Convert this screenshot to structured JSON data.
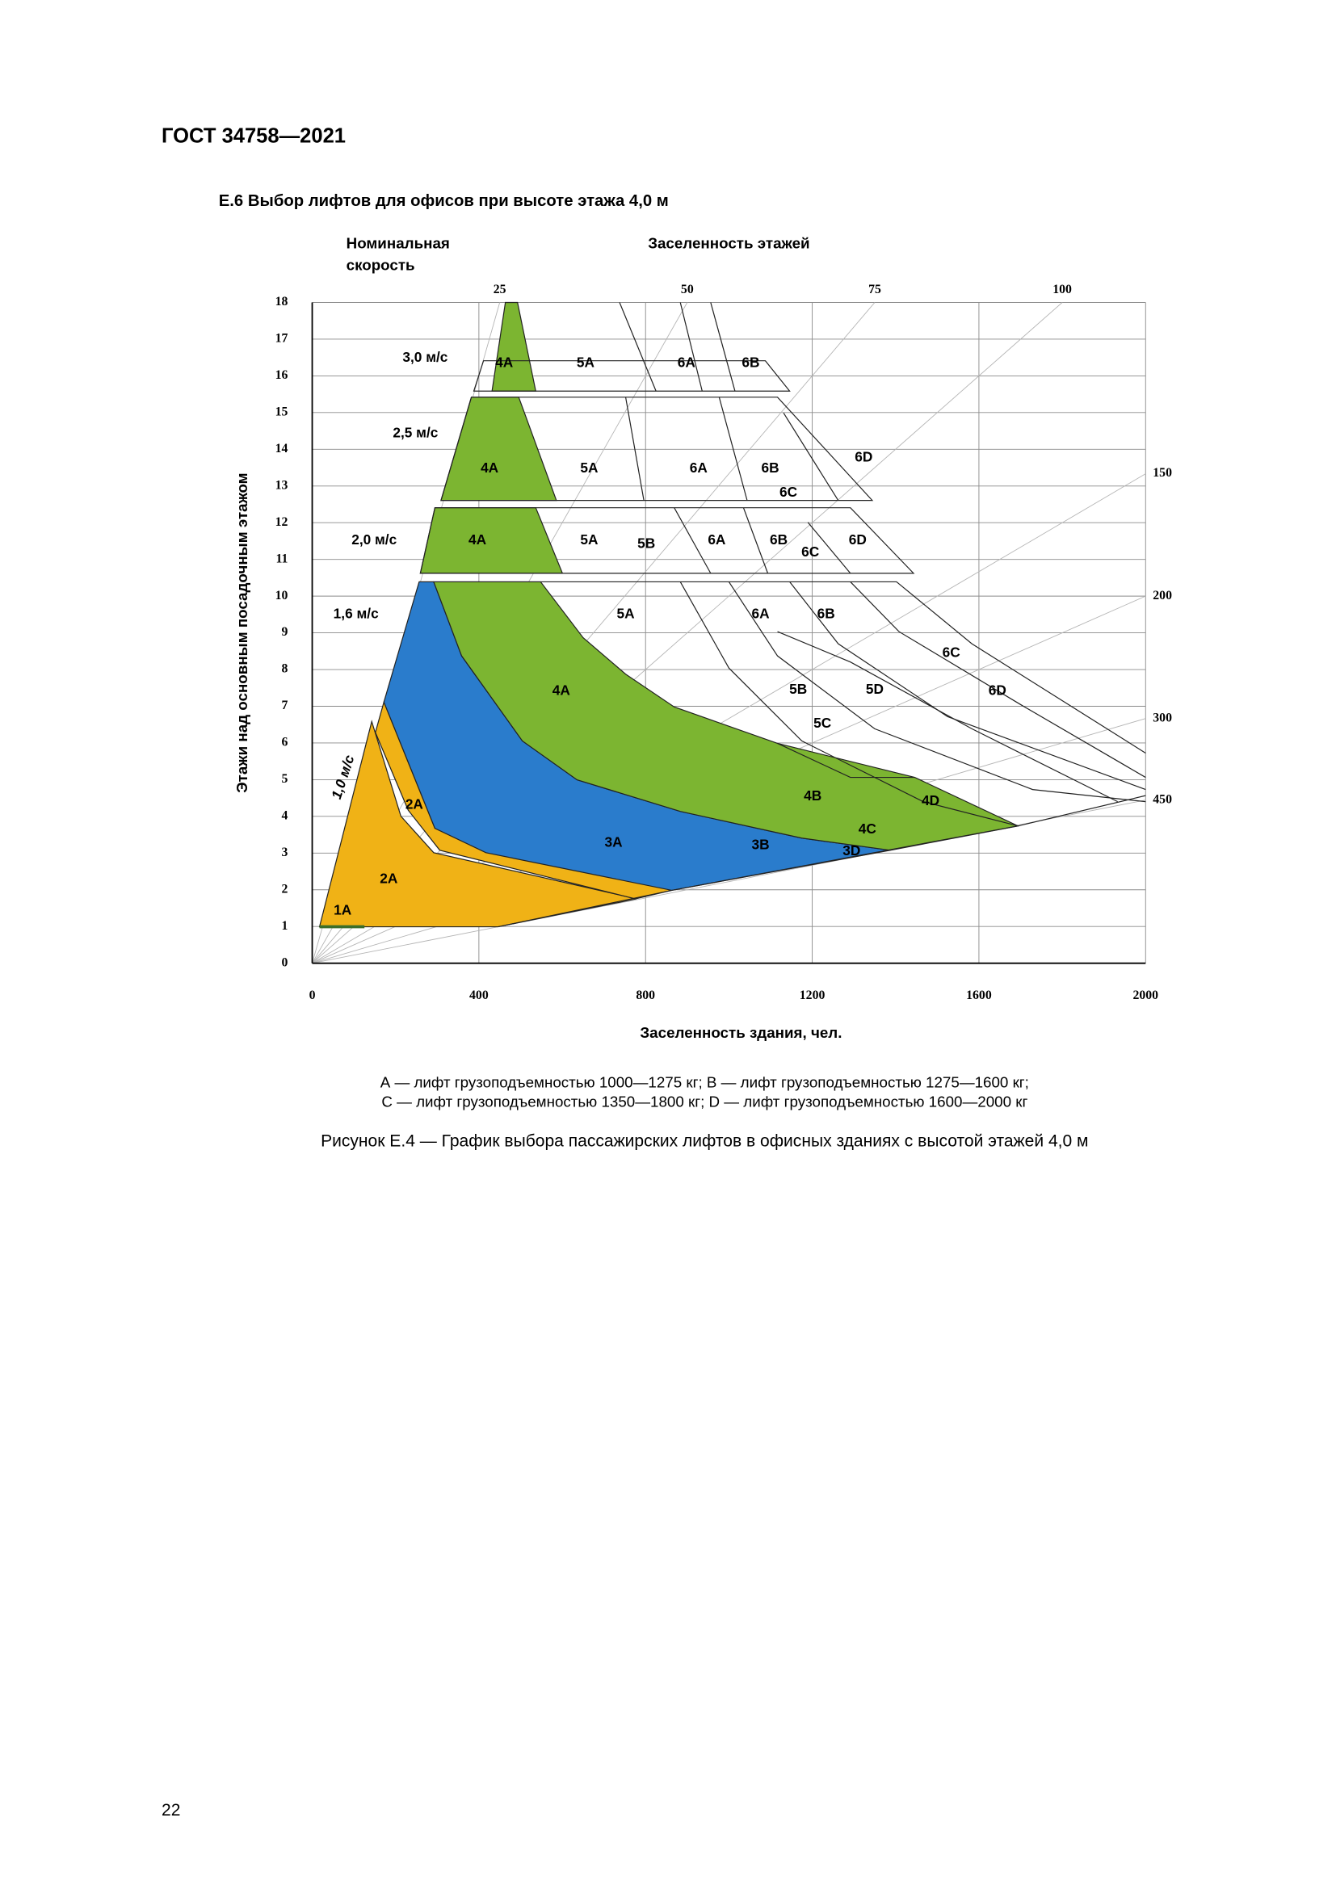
{
  "header": {
    "title": "ГОСТ 34758—2021"
  },
  "section": {
    "title": "Е.6  Выбор лифтов для офисов при высоте этажа 4,0 м"
  },
  "figure": {
    "speed_label": [
      "Номинальная",
      "скорость"
    ],
    "top_axis_label": "Заселенность этажей",
    "x_label": "Заселенность здания, чел.",
    "y_label": "Этажи над основным посадочным этажом",
    "xlim": [
      0,
      2000
    ],
    "xticks": [
      0,
      400,
      800,
      1200,
      1600,
      2000
    ],
    "ylim": [
      0,
      18
    ],
    "yticks": [
      0,
      1,
      2,
      3,
      4,
      5,
      6,
      7,
      8,
      9,
      10,
      11,
      12,
      13,
      14,
      15,
      16,
      17,
      18
    ],
    "top_ticks": [
      25,
      50,
      75,
      100
    ],
    "right_ticks": [
      150,
      200,
      300,
      450
    ],
    "labels": [
      "3,0 м/с",
      "4А",
      "5А",
      "6А",
      "6В",
      "2,5 м/с",
      "4А",
      "5А",
      "6А",
      "6В",
      "6D",
      "6С",
      "2,0 м/с",
      "4А",
      "5А",
      "5В",
      "6А",
      "6В",
      "6С",
      "6D",
      "1,6 м/с",
      "5А",
      "6А",
      "6В",
      "4А",
      "6С",
      "5В",
      "5D",
      "6D",
      "5С",
      "1,0 м/с",
      "2А",
      "2А",
      "1А",
      "3А",
      "3В",
      "3D",
      "4В",
      "4С",
      "4D"
    ]
  },
  "legend": [
    "А — лифт грузоподъемностью 1000—1275 кг; В — лифт грузоподъемностью 1275—1600 кг;",
    "С — лифт грузоподъемностью 1350—1800 кг; D — лифт грузоподъемностью 1600—2000 кг"
  ],
  "caption": "Рисунок Е.4 — График выбора пассажирских лифтов в офисных зданиях с высотой этажей 4,0 м",
  "page_number": "22"
}
